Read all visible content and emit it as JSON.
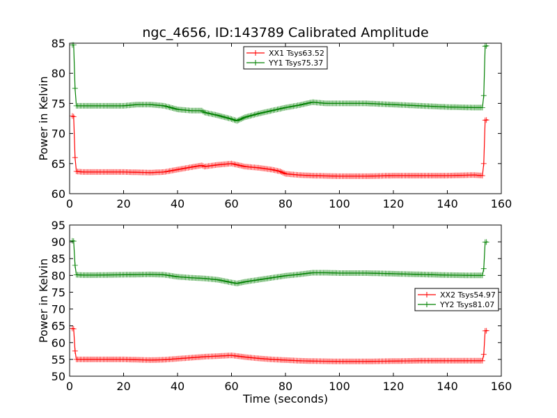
{
  "figure": {
    "title": "ngc_4656, ID:143789 Calibrated Amplitude",
    "xlabel": "Time (seconds)"
  },
  "chart_data": [
    {
      "type": "line",
      "ylabel": "Power in Kelvin",
      "xlim": [
        0,
        160
      ],
      "ylim": [
        60,
        85
      ],
      "xticks": [
        0,
        20,
        40,
        60,
        80,
        100,
        120,
        140,
        160
      ],
      "yticks": [
        60,
        65,
        70,
        75,
        80,
        85
      ],
      "legend_position": "top-center",
      "series": [
        {
          "name": "XX1 Tsys63.52",
          "color": "#ff0000",
          "points": [
            [
              1,
              72.9
            ],
            [
              1.5,
              72.8
            ],
            [
              2,
              66
            ],
            [
              2.5,
              63.7
            ],
            [
              5,
              63.6
            ],
            [
              10,
              63.6
            ],
            [
              20,
              63.6
            ],
            [
              30,
              63.5
            ],
            [
              35,
              63.6
            ],
            [
              40,
              64
            ],
            [
              45,
              64.4
            ],
            [
              49,
              64.7
            ],
            [
              50,
              64.5
            ],
            [
              55,
              64.8
            ],
            [
              60,
              65
            ],
            [
              62,
              64.8
            ],
            [
              65,
              64.5
            ],
            [
              70,
              64.3
            ],
            [
              75,
              64
            ],
            [
              78,
              63.7
            ],
            [
              80,
              63.3
            ],
            [
              85,
              63.1
            ],
            [
              90,
              63.0
            ],
            [
              100,
              62.9
            ],
            [
              110,
              62.9
            ],
            [
              120,
              63.0
            ],
            [
              130,
              63.0
            ],
            [
              140,
              63.0
            ],
            [
              150,
              63.1
            ],
            [
              153,
              63.0
            ],
            [
              153.5,
              65
            ],
            [
              154,
              72.2
            ],
            [
              155,
              72.3
            ]
          ]
        },
        {
          "name": "YY1 Tsys75.37",
          "color": "#008000",
          "points": [
            [
              1,
              84.7
            ],
            [
              1.5,
              84.7
            ],
            [
              2,
              77.5
            ],
            [
              2.5,
              74.6
            ],
            [
              5,
              74.6
            ],
            [
              10,
              74.6
            ],
            [
              20,
              74.6
            ],
            [
              25,
              74.8
            ],
            [
              30,
              74.8
            ],
            [
              35,
              74.6
            ],
            [
              40,
              74
            ],
            [
              45,
              73.8
            ],
            [
              49,
              73.8
            ],
            [
              50,
              73.5
            ],
            [
              55,
              73
            ],
            [
              60,
              72.4
            ],
            [
              62,
              72.1
            ],
            [
              65,
              72.7
            ],
            [
              70,
              73.3
            ],
            [
              75,
              73.8
            ],
            [
              80,
              74.3
            ],
            [
              85,
              74.7
            ],
            [
              90,
              75.2
            ],
            [
              95,
              75.0
            ],
            [
              100,
              75.0
            ],
            [
              110,
              75.0
            ],
            [
              120,
              74.8
            ],
            [
              130,
              74.6
            ],
            [
              140,
              74.4
            ],
            [
              150,
              74.3
            ],
            [
              153,
              74.3
            ],
            [
              153.5,
              76.3
            ],
            [
              154,
              84.5
            ],
            [
              155,
              84.6
            ]
          ]
        }
      ]
    },
    {
      "type": "line",
      "ylabel": "Power in Kelvin",
      "xlim": [
        0,
        160
      ],
      "ylim": [
        50,
        95
      ],
      "xticks": [
        0,
        20,
        40,
        60,
        80,
        100,
        120,
        140,
        160
      ],
      "yticks": [
        50,
        55,
        60,
        65,
        70,
        75,
        80,
        85,
        90,
        95
      ],
      "legend_position": "center-right",
      "series": [
        {
          "name": "XX2 Tsys54.97",
          "color": "#ff0000",
          "points": [
            [
              1,
              64.2
            ],
            [
              1.5,
              64.1
            ],
            [
              2,
              57.5
            ],
            [
              2.5,
              55
            ],
            [
              5,
              55
            ],
            [
              10,
              55
            ],
            [
              20,
              55
            ],
            [
              30,
              54.8
            ],
            [
              35,
              54.9
            ],
            [
              40,
              55.2
            ],
            [
              45,
              55.5
            ],
            [
              50,
              55.8
            ],
            [
              55,
              56
            ],
            [
              60,
              56.2
            ],
            [
              62,
              56
            ],
            [
              65,
              55.7
            ],
            [
              70,
              55.3
            ],
            [
              75,
              55
            ],
            [
              80,
              54.8
            ],
            [
              85,
              54.6
            ],
            [
              90,
              54.5
            ],
            [
              100,
              54.4
            ],
            [
              110,
              54.4
            ],
            [
              120,
              54.5
            ],
            [
              130,
              54.6
            ],
            [
              140,
              54.6
            ],
            [
              150,
              54.6
            ],
            [
              153,
              54.6
            ],
            [
              153.5,
              56.5
            ],
            [
              154,
              63.5
            ],
            [
              155,
              63.6
            ]
          ]
        },
        {
          "name": "YY2 Tsys81.07",
          "color": "#008000",
          "points": [
            [
              1,
              90.3
            ],
            [
              1.5,
              90.2
            ],
            [
              2,
              83
            ],
            [
              2.5,
              80.2
            ],
            [
              5,
              80.1
            ],
            [
              10,
              80.1
            ],
            [
              20,
              80.2
            ],
            [
              30,
              80.3
            ],
            [
              35,
              80.2
            ],
            [
              40,
              79.6
            ],
            [
              45,
              79.3
            ],
            [
              50,
              79.1
            ],
            [
              55,
              78.7
            ],
            [
              60,
              77.9
            ],
            [
              62,
              77.6
            ],
            [
              65,
              78.1
            ],
            [
              70,
              78.7
            ],
            [
              75,
              79.3
            ],
            [
              80,
              79.9
            ],
            [
              85,
              80.3
            ],
            [
              90,
              80.8
            ],
            [
              95,
              80.8
            ],
            [
              100,
              80.7
            ],
            [
              110,
              80.7
            ],
            [
              120,
              80.5
            ],
            [
              130,
              80.3
            ],
            [
              140,
              80.1
            ],
            [
              150,
              80.0
            ],
            [
              153,
              80.0
            ],
            [
              153.5,
              82
            ],
            [
              154,
              89.9
            ],
            [
              155,
              90.0
            ]
          ]
        }
      ]
    }
  ]
}
